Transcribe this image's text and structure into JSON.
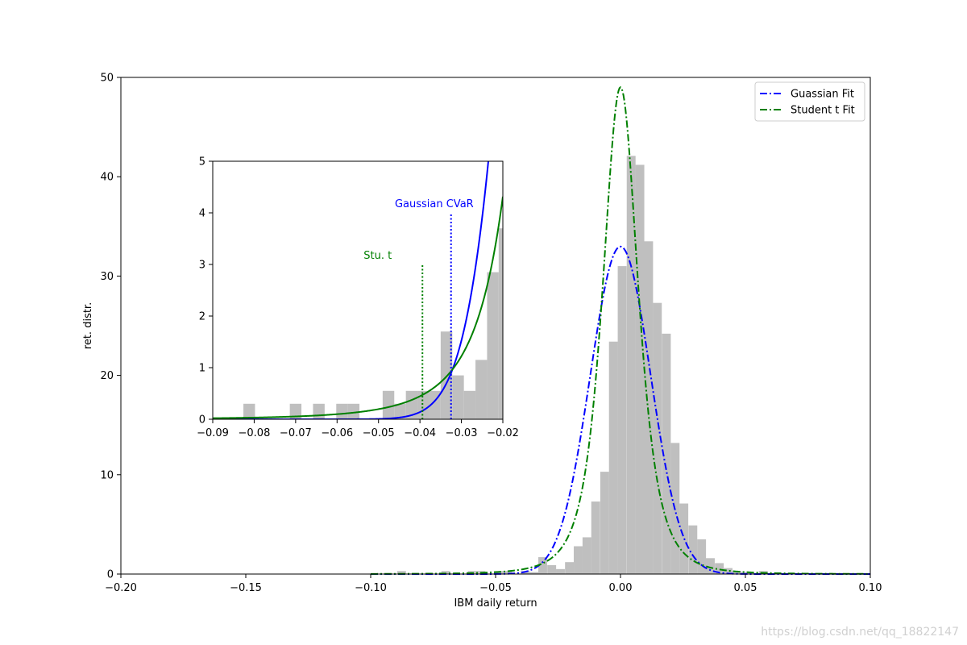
{
  "watermark": "https://blog.csdn.net/qq_18822147",
  "colors": {
    "hist": "#bfbfbf",
    "gaussian": "#0000ff",
    "student": "#008000",
    "axis": "#000000"
  },
  "chart_data": [
    {
      "id": "main",
      "type": "histogram+line",
      "title": "",
      "xlabel": "IBM daily return",
      "ylabel": "ret. distr.",
      "xlim": [
        -0.2,
        0.1
      ],
      "ylim": [
        0,
        50
      ],
      "xticks": [
        -0.2,
        -0.15,
        -0.1,
        -0.05,
        0.0,
        0.05,
        0.1
      ],
      "xtick_labels": [
        "−0.20",
        "−0.15",
        "−0.10",
        "−0.05",
        "0.00",
        "0.05",
        "0.10"
      ],
      "yticks": [
        0,
        10,
        20,
        30,
        40,
        50
      ],
      "ytick_labels": [
        "0",
        "10",
        "20",
        "30",
        "40",
        "50"
      ],
      "grid": false,
      "legend": {
        "placement": "upper-right",
        "entries": [
          {
            "label": "Guassian Fit",
            "color": "#0000ff",
            "style": "dash-dot"
          },
          {
            "label": "Student t Fit",
            "color": "#008000",
            "style": "dash-dot"
          }
        ]
      },
      "series": [
        {
          "name": "Guassian Fit",
          "kind": "normal",
          "mean": 0.0,
          "sd": 0.0121,
          "x_range": [
            -0.1,
            0.1
          ]
        },
        {
          "name": "Student t Fit",
          "kind": "student_t",
          "loc": 0.0,
          "scale": 0.0075,
          "df": 3.0,
          "x_range": [
            -0.1,
            0.1
          ]
        }
      ],
      "histogram": {
        "bin_width": 0.00353,
        "bins": [
          {
            "x0": -0.0894,
            "h": 0.3
          },
          {
            "x0": -0.0717,
            "h": 0.3
          },
          {
            "x0": -0.0611,
            "h": 0.3
          },
          {
            "x0": -0.0576,
            "h": 0.3
          },
          {
            "x0": -0.0505,
            "h": 0.3
          },
          {
            "x0": -0.047,
            "h": 0.3
          },
          {
            "x0": -0.0399,
            "h": 0.3
          },
          {
            "x0": -0.0364,
            "h": 0.2
          },
          {
            "x0": -0.0329,
            "h": 1.7
          },
          {
            "x0": -0.0293,
            "h": 0.9
          },
          {
            "x0": -0.0258,
            "h": 0.5
          },
          {
            "x0": -0.0222,
            "h": 1.2
          },
          {
            "x0": -0.0187,
            "h": 2.8
          },
          {
            "x0": -0.0152,
            "h": 3.7
          },
          {
            "x0": -0.0117,
            "h": 7.3
          },
          {
            "x0": -0.0081,
            "h": 10.3
          },
          {
            "x0": -0.0046,
            "h": 23.4
          },
          {
            "x0": -0.0011,
            "h": 31.0
          },
          {
            "x0": 0.0025,
            "h": 42.1
          },
          {
            "x0": 0.006,
            "h": 41.2
          },
          {
            "x0": 0.0095,
            "h": 33.5
          },
          {
            "x0": 0.013,
            "h": 27.3
          },
          {
            "x0": 0.0166,
            "h": 24.2
          },
          {
            "x0": 0.0201,
            "h": 13.2
          },
          {
            "x0": 0.0236,
            "h": 7.1
          },
          {
            "x0": 0.0272,
            "h": 4.9
          },
          {
            "x0": 0.0307,
            "h": 3.5
          },
          {
            "x0": 0.0342,
            "h": 1.6
          },
          {
            "x0": 0.0378,
            "h": 1.1
          },
          {
            "x0": 0.0413,
            "h": 0.6
          },
          {
            "x0": 0.0448,
            "h": 0.3
          },
          {
            "x0": 0.0483,
            "h": 0.2
          },
          {
            "x0": 0.0519,
            "h": 0.1
          },
          {
            "x0": 0.0554,
            "h": 0.3
          }
        ]
      }
    },
    {
      "id": "inset",
      "type": "histogram+line",
      "title": "",
      "xlabel": "",
      "ylabel": "",
      "xlim": [
        -0.09,
        -0.02
      ],
      "ylim": [
        0,
        5
      ],
      "xticks": [
        -0.09,
        -0.08,
        -0.07,
        -0.06,
        -0.05,
        -0.04,
        -0.03,
        -0.02
      ],
      "xtick_labels": [
        "−0.09",
        "−0.08",
        "−0.07",
        "−0.06",
        "−0.05",
        "−0.04",
        "−0.03",
        "−0.02"
      ],
      "yticks": [
        0,
        1,
        2,
        3,
        4,
        5
      ],
      "ytick_labels": [
        "0",
        "1",
        "2",
        "3",
        "4",
        "5"
      ],
      "grid": false,
      "series": [
        {
          "name": "Gaussian",
          "kind": "normal",
          "mean": 0.0,
          "sd": 0.0121,
          "x_range": [
            -0.09,
            -0.02
          ]
        },
        {
          "name": "Student t",
          "kind": "student_t",
          "loc": 0.0,
          "scale": 0.0075,
          "df": 3.0,
          "x_range": [
            -0.09,
            -0.02
          ]
        }
      ],
      "vlines": [
        {
          "label": "Gaussian CVaR",
          "x": -0.0325,
          "ymax": 4.0,
          "color": "#0000ff",
          "style": "dotted"
        },
        {
          "label": "Stu. t",
          "x": -0.0394,
          "ymax": 3.0,
          "color": "#008000",
          "style": "dotted"
        }
      ],
      "histogram": {
        "bin_width": 0.0028,
        "bins": [
          {
            "x0": -0.0826,
            "h": 0.3
          },
          {
            "x0": -0.0714,
            "h": 0.3
          },
          {
            "x0": -0.0658,
            "h": 0.3
          },
          {
            "x0": -0.0602,
            "h": 0.3
          },
          {
            "x0": -0.0574,
            "h": 0.3
          },
          {
            "x0": -0.049,
            "h": 0.55
          },
          {
            "x0": -0.0462,
            "h": 0.3
          },
          {
            "x0": -0.0434,
            "h": 0.55
          },
          {
            "x0": -0.0406,
            "h": 0.55
          },
          {
            "x0": -0.0378,
            "h": 0.55
          },
          {
            "x0": -0.035,
            "h": 1.7
          },
          {
            "x0": -0.0322,
            "h": 0.85
          },
          {
            "x0": -0.0294,
            "h": 0.55
          },
          {
            "x0": -0.0266,
            "h": 1.15
          },
          {
            "x0": -0.0238,
            "h": 2.85
          },
          {
            "x0": -0.021,
            "h": 3.7
          }
        ]
      }
    }
  ]
}
